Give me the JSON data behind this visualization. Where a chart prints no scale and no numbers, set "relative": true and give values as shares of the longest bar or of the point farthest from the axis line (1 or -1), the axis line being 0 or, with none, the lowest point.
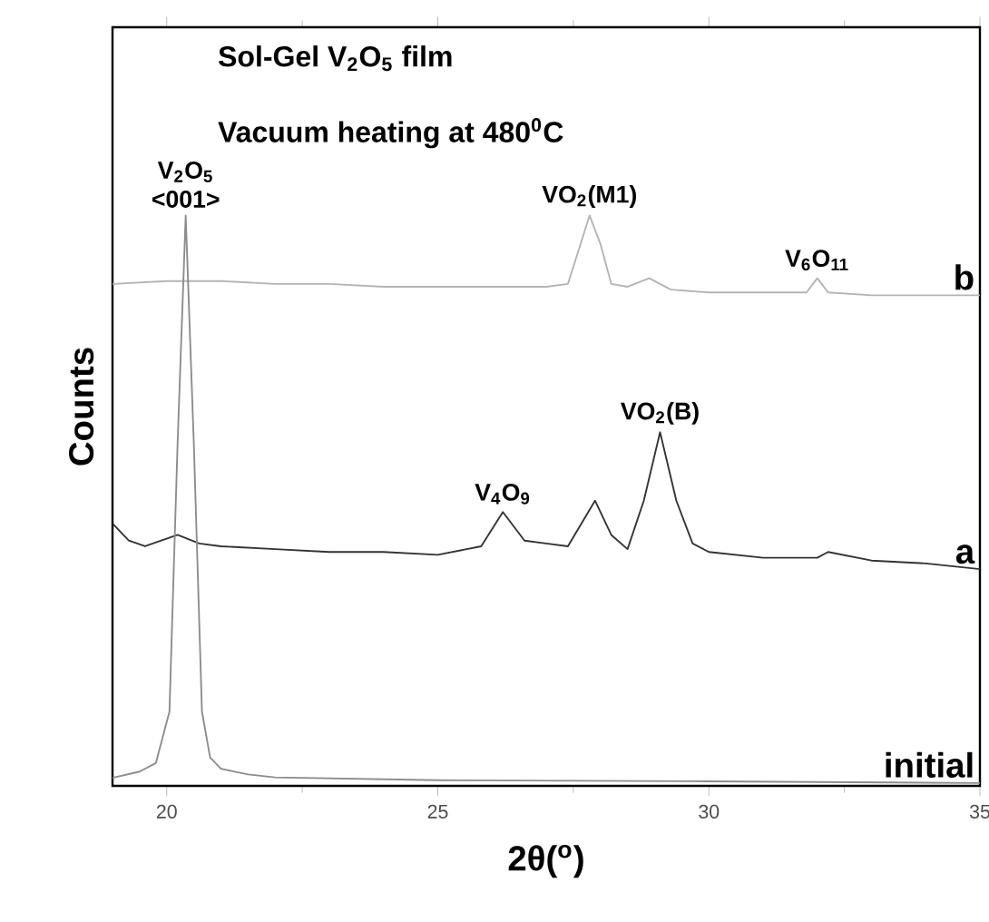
{
  "chart_data": {
    "type": "line",
    "relative": true,
    "xlabel": "2θ($^{o}$)",
    "ylabel": "Counts",
    "xlim": [
      19,
      35
    ],
    "xticks": [
      20,
      25,
      30,
      35
    ],
    "annotations": [
      "Sol-Gel V$_{2}$O$_{5}$ film",
      "Vacuum heating at 480$^{0}$C",
      {
        "text": "V$_{2}$O$_{5}$ <001>",
        "x": 20.35,
        "y": 1.0
      },
      {
        "text": "VO$_{2}$(M1)",
        "x": 27.8,
        "y": 1.0
      },
      {
        "text": "V$_{6}$O$_{11}$",
        "x": 32.0,
        "y": 0.89
      },
      {
        "text": "VO$_{2}$(B)",
        "x": 29.1,
        "y": 0.62
      },
      {
        "text": "V$_{4}$O$_{9}$",
        "x": 26.2,
        "y": 0.48
      }
    ],
    "series": [
      {
        "name": "b",
        "color": "#b4b4b4",
        "x": [
          19,
          20,
          21,
          22,
          23,
          24,
          25,
          26,
          27,
          27.4,
          27.6,
          27.8,
          28.0,
          28.2,
          28.5,
          28.9,
          29.3,
          30,
          31,
          31.8,
          32.0,
          32.2,
          33,
          34,
          35
        ],
        "values": [
          0.88,
          0.885,
          0.885,
          0.88,
          0.88,
          0.875,
          0.875,
          0.875,
          0.875,
          0.88,
          0.94,
          1.0,
          0.95,
          0.88,
          0.875,
          0.89,
          0.87,
          0.865,
          0.865,
          0.865,
          0.89,
          0.865,
          0.86,
          0.86,
          0.86
        ]
      },
      {
        "name": "a",
        "color": "#333333",
        "x": [
          19,
          19.3,
          19.6,
          20.2,
          20.6,
          21,
          22,
          23,
          24,
          25,
          25.8,
          26.2,
          26.6,
          27,
          27.4,
          27.9,
          28.2,
          28.5,
          28.8,
          29.1,
          29.4,
          29.7,
          30,
          31,
          32,
          32.2,
          33,
          34,
          35
        ],
        "values": [
          0.46,
          0.43,
          0.42,
          0.44,
          0.425,
          0.42,
          0.415,
          0.41,
          0.41,
          0.405,
          0.42,
          0.48,
          0.43,
          0.425,
          0.42,
          0.5,
          0.44,
          0.415,
          0.5,
          0.62,
          0.5,
          0.425,
          0.41,
          0.4,
          0.4,
          0.41,
          0.395,
          0.39,
          0.38
        ]
      },
      {
        "name": "initial",
        "color": "#8c8c8c",
        "x": [
          19,
          19.5,
          19.8,
          20.05,
          20.2,
          20.35,
          20.5,
          20.65,
          20.8,
          21.0,
          21.5,
          22,
          25,
          30,
          35
        ],
        "values": [
          0.014,
          0.025,
          0.04,
          0.13,
          0.6,
          1.0,
          0.6,
          0.13,
          0.05,
          0.03,
          0.02,
          0.015,
          0.01,
          0.008,
          0.005
        ]
      }
    ]
  }
}
